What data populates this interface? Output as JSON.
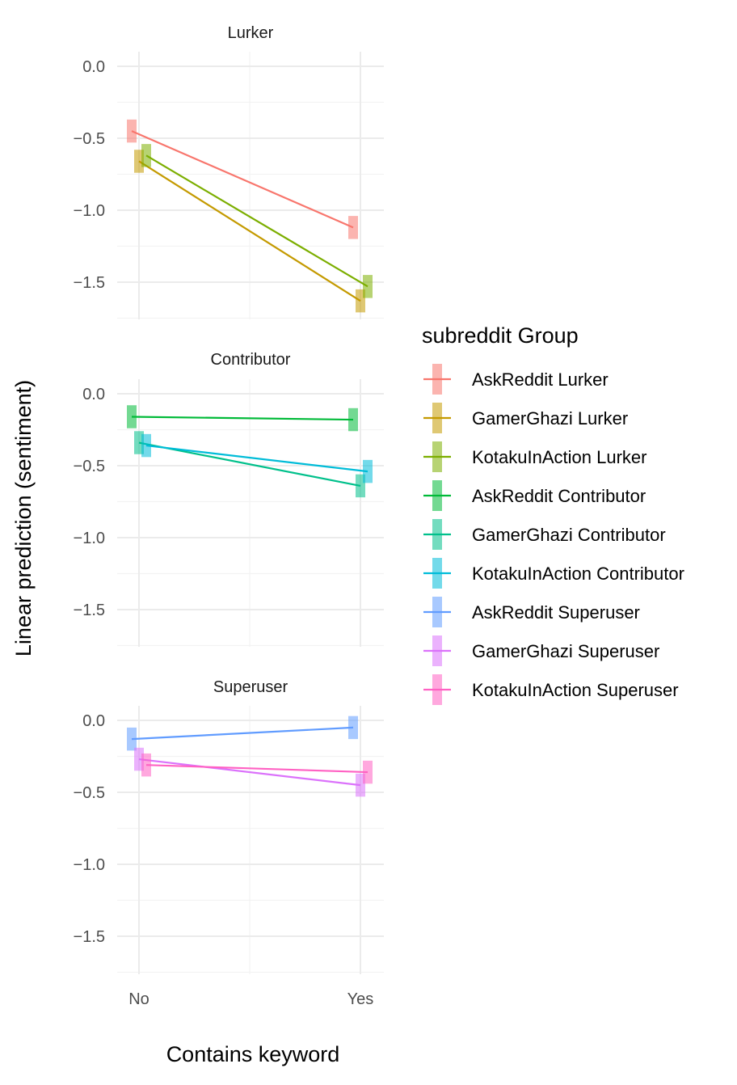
{
  "chart_data": {
    "type": "line",
    "xlabel": "Contains keyword",
    "ylabel": "Linear prediction (sentiment)",
    "categories": [
      "No",
      "Yes"
    ],
    "ylim": [
      -1.75,
      0.1
    ],
    "yticks": [
      0.0,
      -0.5,
      -1.0,
      -1.5
    ],
    "ytick_labels": [
      "0.0",
      "−0.5",
      "−1.0",
      "−1.5"
    ],
    "grid": true,
    "legend": {
      "title": "subreddit Group",
      "position": "right"
    },
    "panels": [
      {
        "title": "Lurker",
        "series": [
          {
            "name": "AskReddit Lurker",
            "color": "#F8766D",
            "values": [
              -0.45,
              -1.12
            ],
            "errors": [
              0.08,
              0.08
            ]
          },
          {
            "name": "GamerGhazi Lurker",
            "color": "#C49A00",
            "values": [
              -0.66,
              -1.63
            ],
            "errors": [
              0.08,
              0.08
            ]
          },
          {
            "name": "KotakuInAction Lurker",
            "color": "#7CAE00",
            "values": [
              -0.62,
              -1.53
            ],
            "errors": [
              0.08,
              0.08
            ]
          }
        ]
      },
      {
        "title": "Contributor",
        "series": [
          {
            "name": "AskReddit Contributor",
            "color": "#00BA38",
            "values": [
              -0.16,
              -0.18
            ],
            "errors": [
              0.08,
              0.08
            ]
          },
          {
            "name": "GamerGhazi Contributor",
            "color": "#00C08B",
            "values": [
              -0.34,
              -0.64
            ],
            "errors": [
              0.08,
              0.08
            ]
          },
          {
            "name": "KotakuInAction Contributor",
            "color": "#00BCD8",
            "values": [
              -0.36,
              -0.54
            ],
            "errors": [
              0.08,
              0.08
            ]
          }
        ]
      },
      {
        "title": "Superuser",
        "series": [
          {
            "name": "AskReddit Superuser",
            "color": "#619CFF",
            "values": [
              -0.13,
              -0.05
            ],
            "errors": [
              0.08,
              0.08
            ]
          },
          {
            "name": "GamerGhazi Superuser",
            "color": "#DB72FB",
            "values": [
              -0.27,
              -0.45
            ],
            "errors": [
              0.08,
              0.08
            ]
          },
          {
            "name": "KotakuInAction Superuser",
            "color": "#FF61C3",
            "values": [
              -0.31,
              -0.36
            ],
            "errors": [
              0.08,
              0.08
            ]
          }
        ]
      }
    ]
  }
}
